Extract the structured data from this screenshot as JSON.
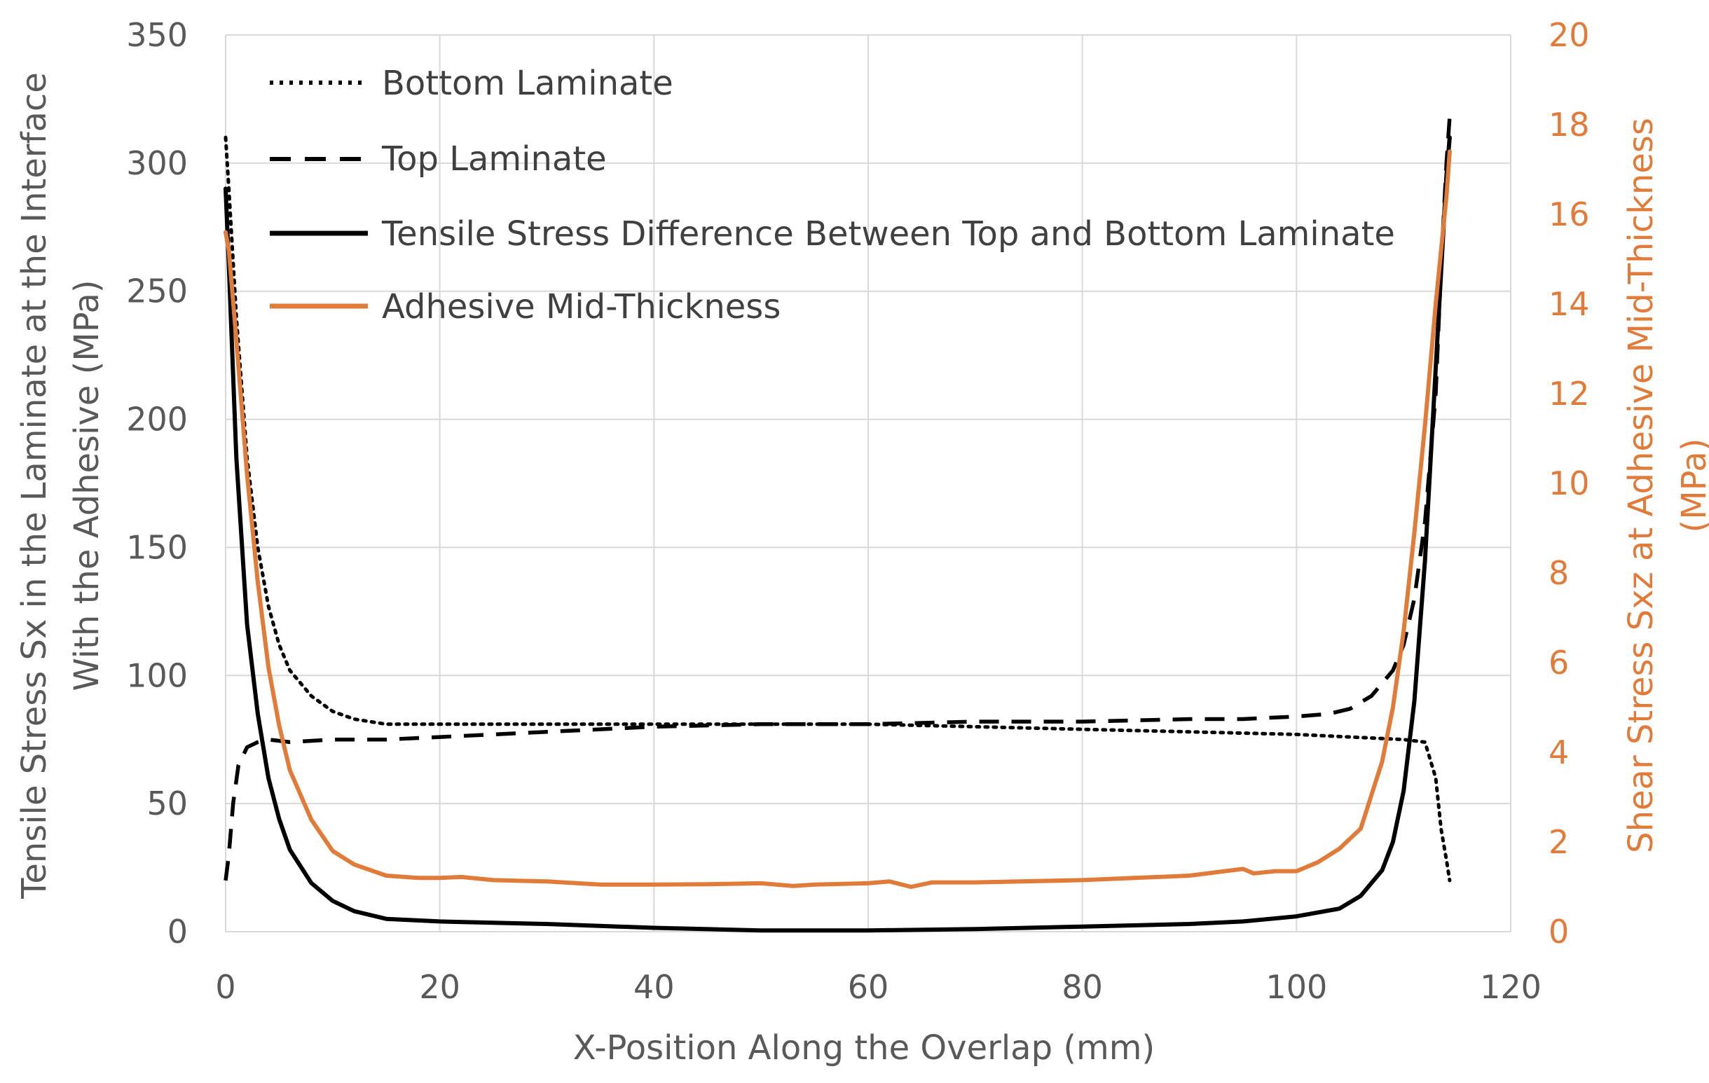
{
  "chart_data": {
    "type": "line",
    "title": "",
    "xlabel": "X-Position Along the Overlap (mm)",
    "ylabel_lines": [
      "Tensile Stress Sx in the Laminate at the Interface",
      "With the Adhesive (MPa)"
    ],
    "y2label_lines": [
      "Shear Stress Sxz at Adhesive Mid-Thickness",
      "(MPa)"
    ],
    "xlim": [
      0,
      120
    ],
    "ylim": [
      0,
      350
    ],
    "y2lim": [
      0,
      20
    ],
    "x_ticks": [
      "0",
      "20",
      "40",
      "60",
      "80",
      "100",
      "120"
    ],
    "y_ticks": [
      "0",
      "50",
      "100",
      "150",
      "200",
      "250",
      "300",
      "350"
    ],
    "y2_ticks": [
      "0",
      "2",
      "4",
      "6",
      "8",
      "10",
      "12",
      "14",
      "16",
      "18",
      "20"
    ],
    "grid": true,
    "legend_position": "top-left",
    "colors": {
      "black": "#000000",
      "orange": "#E07B39",
      "axis_text": "#595959",
      "grid": "#d9d9d9"
    },
    "series": [
      {
        "name": "Bottom Laminate",
        "axis": "left",
        "style": "dotted",
        "color": "#000000",
        "x": [
          0,
          0.3,
          1,
          2,
          3,
          4,
          5,
          6,
          8,
          10,
          12,
          15,
          20,
          30,
          40,
          50,
          60,
          70,
          80,
          90,
          100,
          105,
          110,
          112,
          113,
          113.5,
          114,
          114.3
        ],
        "y": [
          310,
          290,
          240,
          185,
          150,
          127,
          112,
          102,
          92,
          86,
          83,
          81,
          81,
          81,
          81,
          81,
          81,
          80,
          79,
          78,
          77,
          76,
          75,
          74,
          60,
          40,
          28,
          20
        ]
      },
      {
        "name": "Top Laminate",
        "axis": "left",
        "style": "dashed",
        "color": "#000000",
        "x": [
          0,
          0.3,
          0.7,
          1.2,
          2,
          3,
          4,
          6,
          10,
          15,
          20,
          30,
          40,
          50,
          60,
          70,
          80,
          90,
          95,
          100,
          103,
          105,
          107,
          109,
          110,
          111,
          112,
          113,
          113.5,
          114,
          114.3
        ],
        "y": [
          20,
          30,
          50,
          65,
          72,
          74,
          75,
          74,
          75,
          75,
          76,
          78,
          80,
          81,
          81,
          82,
          82,
          83,
          83,
          84,
          85,
          87,
          92,
          102,
          112,
          130,
          160,
          210,
          260,
          300,
          318
        ]
      },
      {
        "name": "Tensile Stress Difference Between Top and Bottom Laminate",
        "axis": "left",
        "style": "solid",
        "color": "#000000",
        "x": [
          0,
          0.3,
          1,
          2,
          3,
          4,
          5,
          6,
          8,
          10,
          12,
          15,
          20,
          25,
          30,
          40,
          50,
          60,
          70,
          80,
          90,
          95,
          100,
          104,
          106,
          108,
          109,
          110,
          111,
          112,
          113,
          114,
          114.3
        ],
        "y": [
          290,
          260,
          185,
          120,
          85,
          60,
          44,
          32,
          19,
          12,
          8,
          5,
          4,
          3.5,
          3,
          1.5,
          0.5,
          0.5,
          1,
          2,
          3,
          4,
          6,
          9,
          14,
          24,
          35,
          55,
          90,
          145,
          220,
          295,
          310
        ]
      },
      {
        "name": "Adhesive Mid-Thickness",
        "axis": "right",
        "style": "solid",
        "color": "#E07B39",
        "x": [
          0,
          0.3,
          1,
          2,
          3,
          4,
          5,
          6,
          8,
          10,
          12,
          15,
          18,
          20,
          22,
          25,
          30,
          35,
          40,
          45,
          50,
          53,
          55,
          60,
          62,
          64,
          66,
          70,
          80,
          90,
          95,
          96,
          98,
          100,
          102,
          104,
          106,
          108,
          109,
          110,
          111,
          112,
          113,
          114,
          114.3
        ],
        "y": [
          15.6,
          15.2,
          13.2,
          10.2,
          7.8,
          5.9,
          4.6,
          3.6,
          2.5,
          1.8,
          1.5,
          1.25,
          1.2,
          1.2,
          1.22,
          1.15,
          1.12,
          1.05,
          1.05,
          1.06,
          1.08,
          1.02,
          1.05,
          1.08,
          1.12,
          1.0,
          1.1,
          1.1,
          1.15,
          1.25,
          1.4,
          1.3,
          1.35,
          1.35,
          1.55,
          1.85,
          2.3,
          3.8,
          5.0,
          6.7,
          8.9,
          11.3,
          14.0,
          16.4,
          17.4
        ]
      }
    ]
  }
}
